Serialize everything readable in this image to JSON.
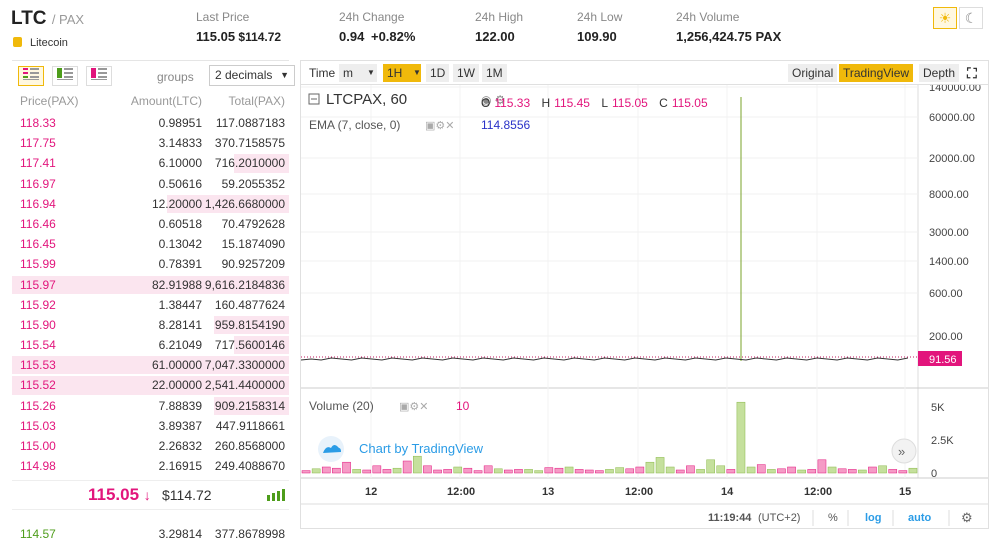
{
  "header": {
    "base": "LTC",
    "quote": "/ PAX",
    "coin_name": "Litecoin",
    "stats": [
      {
        "label": "Last Price",
        "value": "115.05",
        "extra": "$114.72"
      },
      {
        "label": "24h Change",
        "value": "0.94",
        "extra": "+0.82%"
      },
      {
        "label": "24h High",
        "value": "122.00"
      },
      {
        "label": "24h Low",
        "value": "109.90"
      },
      {
        "label": "24h Volume",
        "value": "1,256,424.75 PAX"
      }
    ],
    "theme_light_icon": "sun-icon",
    "theme_dark_icon": "moon-icon"
  },
  "orderbook": {
    "groups_label": "groups",
    "groups_value": "2 decimals",
    "columns": [
      "Price(PAX)",
      "Amount(LTC)",
      "Total(PAX)"
    ],
    "asks": [
      {
        "price": "118.33",
        "amount": "0.98951",
        "total": "117.0887183",
        "depth": 0
      },
      {
        "price": "117.75",
        "amount": "3.14833",
        "total": "370.7158575",
        "depth": 0
      },
      {
        "price": "117.41",
        "amount": "6.10000",
        "total": "716.2010000",
        "depth": 0.2
      },
      {
        "price": "116.97",
        "amount": "0.50616",
        "total": "59.2055352",
        "depth": 0
      },
      {
        "price": "116.94",
        "amount": "12.20000",
        "total": "1,426.6680000",
        "depth": 0.44
      },
      {
        "price": "116.46",
        "amount": "0.60518",
        "total": "70.4792628",
        "depth": 0
      },
      {
        "price": "116.45",
        "amount": "0.13042",
        "total": "15.1874090",
        "depth": 0
      },
      {
        "price": "115.99",
        "amount": "0.78391",
        "total": "90.9257209",
        "depth": 0
      },
      {
        "price": "115.97",
        "amount": "82.91988",
        "total": "9,616.2184836",
        "depth": 1.0
      },
      {
        "price": "115.92",
        "amount": "1.38447",
        "total": "160.4877624",
        "depth": 0
      },
      {
        "price": "115.90",
        "amount": "8.28141",
        "total": "959.8154190",
        "depth": 0.27
      },
      {
        "price": "115.54",
        "amount": "6.21049",
        "total": "717.5600146",
        "depth": 0.2
      },
      {
        "price": "115.53",
        "amount": "61.00000",
        "total": "7,047.3300000",
        "depth": 1.0
      },
      {
        "price": "115.52",
        "amount": "22.00000",
        "total": "2,541.4400000",
        "depth": 1.0
      },
      {
        "price": "115.26",
        "amount": "7.88839",
        "total": "909.2158314",
        "depth": 0.27
      },
      {
        "price": "115.03",
        "amount": "3.89387",
        "total": "447.9118661",
        "depth": 0
      },
      {
        "price": "115.00",
        "amount": "2.26832",
        "total": "260.8568000",
        "depth": 0
      },
      {
        "price": "114.98",
        "amount": "2.16915",
        "total": "249.4088670",
        "depth": 0
      }
    ],
    "last_price": "115.05",
    "last_usd": "$114.72",
    "bid_first": {
      "price": "114.57",
      "amount": "3.29814",
      "total": "377.8678998"
    }
  },
  "toolbar": {
    "time": "Time",
    "m": "m",
    "interval": "1H",
    "d": "1D",
    "w": "1W",
    "mo": "1M",
    "original": "Original",
    "tradingview": "TradingView",
    "depth": "Depth"
  },
  "chart": {
    "symbol": "LTCPAX, 60",
    "o_label": "O",
    "o": "115.33",
    "h_label": "H",
    "h": "115.45",
    "l_label": "L",
    "l": "115.05",
    "c_label": "C",
    "c": "115.05",
    "ema_label": "EMA (7, close, 0)",
    "ema_value": "114.8556",
    "price_badge": "91.56",
    "volume_label": "Volume (20)",
    "volume_value": "10",
    "watermark": "Chart by TradingView",
    "clock": "11:19:44",
    "tz": "(UTC+2)",
    "pct": "%",
    "log": "log",
    "auto": "auto"
  },
  "chart_data": {
    "type": "bar",
    "title": "LTCPAX, 60",
    "price_axis_ticks": [
      "140000.00",
      "60000.00",
      "20000.00",
      "8000.00",
      "3000.00",
      "1400.00",
      "600.00",
      "200.00"
    ],
    "volume_axis_ticks": [
      "5K",
      "2.5K",
      "0"
    ],
    "x_ticks": [
      "12",
      "12:00",
      "13",
      "12:00",
      "14",
      "12:00",
      "15"
    ],
    "scale": "log",
    "spike_high": 140000,
    "volume": [
      {
        "v": 200,
        "up": false
      },
      {
        "v": 350,
        "up": true
      },
      {
        "v": 500,
        "up": false
      },
      {
        "v": 400,
        "up": false
      },
      {
        "v": 900,
        "up": false
      },
      {
        "v": 300,
        "up": true
      },
      {
        "v": 250,
        "up": false
      },
      {
        "v": 600,
        "up": false
      },
      {
        "v": 300,
        "up": false
      },
      {
        "v": 400,
        "up": true
      },
      {
        "v": 1000,
        "up": false
      },
      {
        "v": 1400,
        "up": true
      },
      {
        "v": 600,
        "up": false
      },
      {
        "v": 250,
        "up": false
      },
      {
        "v": 300,
        "up": false
      },
      {
        "v": 500,
        "up": true
      },
      {
        "v": 400,
        "up": false
      },
      {
        "v": 200,
        "up": false
      },
      {
        "v": 600,
        "up": false
      },
      {
        "v": 350,
        "up": true
      },
      {
        "v": 250,
        "up": false
      },
      {
        "v": 300,
        "up": false
      },
      {
        "v": 300,
        "up": true
      },
      {
        "v": 200,
        "up": true
      },
      {
        "v": 450,
        "up": false
      },
      {
        "v": 400,
        "up": false
      },
      {
        "v": 500,
        "up": true
      },
      {
        "v": 300,
        "up": false
      },
      {
        "v": 250,
        "up": false
      },
      {
        "v": 200,
        "up": false
      },
      {
        "v": 300,
        "up": true
      },
      {
        "v": 450,
        "up": true
      },
      {
        "v": 350,
        "up": false
      },
      {
        "v": 500,
        "up": false
      },
      {
        "v": 900,
        "up": true
      },
      {
        "v": 1300,
        "up": true
      },
      {
        "v": 500,
        "up": true
      },
      {
        "v": 250,
        "up": false
      },
      {
        "v": 600,
        "up": false
      },
      {
        "v": 300,
        "up": true
      },
      {
        "v": 1100,
        "up": true
      },
      {
        "v": 600,
        "up": true
      },
      {
        "v": 300,
        "up": false
      },
      {
        "v": 5900,
        "up": true
      },
      {
        "v": 500,
        "up": true
      },
      {
        "v": 700,
        "up": false
      },
      {
        "v": 300,
        "up": true
      },
      {
        "v": 350,
        "up": false
      },
      {
        "v": 500,
        "up": false
      },
      {
        "v": 250,
        "up": true
      },
      {
        "v": 300,
        "up": false
      },
      {
        "v": 1100,
        "up": false
      },
      {
        "v": 500,
        "up": true
      },
      {
        "v": 350,
        "up": false
      },
      {
        "v": 300,
        "up": false
      },
      {
        "v": 250,
        "up": true
      },
      {
        "v": 500,
        "up": false
      },
      {
        "v": 600,
        "up": true
      },
      {
        "v": 300,
        "up": false
      },
      {
        "v": 200,
        "up": false
      },
      {
        "v": 400,
        "up": true
      }
    ]
  }
}
